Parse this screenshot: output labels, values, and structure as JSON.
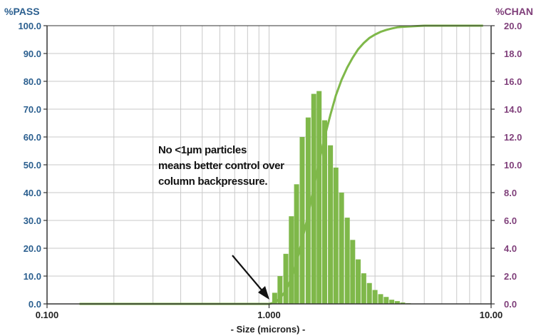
{
  "chart_data": {
    "type": "bar",
    "x_scale": "log",
    "xlabel": "- Size (microns) -",
    "ylabel_left": "%PASS",
    "ylabel_right": "%CHAN",
    "xlim": [
      0.1,
      10
    ],
    "ylim_left": [
      0,
      100
    ],
    "ylim_right": [
      0,
      20
    ],
    "x_tick_labels": [
      "0.100",
      "1.000",
      "10.00"
    ],
    "y_left_tick_labels": [
      "0.0",
      "10.0",
      "20.0",
      "30.0",
      "40.0",
      "50.0",
      "60.0",
      "70.0",
      "80.0",
      "90.0",
      "100.0"
    ],
    "y_right_tick_labels": [
      "0.0",
      "2.0",
      "4.0",
      "6.0",
      "8.0",
      "10.0",
      "12.0",
      "14.0",
      "16.0",
      "18.0",
      "20.0"
    ],
    "grid": true,
    "annotation": {
      "lines": [
        "No <1µm particles",
        "means better control over",
        "column backpressure."
      ]
    },
    "series": [
      {
        "name": "%CHAN",
        "axis": "right",
        "kind": "bar",
        "color": "#7fb84a",
        "x": [
          1.06,
          1.12,
          1.19,
          1.26,
          1.33,
          1.41,
          1.5,
          1.59,
          1.68,
          1.78,
          1.89,
          2.0,
          2.12,
          2.25,
          2.38,
          2.52,
          2.67,
          2.83,
          3.0,
          3.18,
          3.37,
          3.57,
          3.78,
          4.0,
          4.24,
          4.49,
          4.76
        ],
        "values": [
          0.8,
          2.0,
          3.6,
          6.3,
          8.6,
          12.0,
          13.4,
          15.1,
          15.3,
          13.2,
          11.4,
          9.8,
          8.0,
          6.2,
          4.6,
          3.2,
          2.2,
          1.5,
          1.0,
          0.7,
          0.5,
          0.3,
          0.2,
          0.1,
          0.05,
          0.0,
          0.0
        ]
      },
      {
        "name": "%PASS",
        "axis": "left",
        "kind": "line",
        "color": "#7fb84a",
        "x": [
          0.14,
          0.5,
          1.0,
          1.06,
          1.12,
          1.19,
          1.26,
          1.33,
          1.41,
          1.5,
          1.59,
          1.68,
          1.78,
          1.89,
          2.0,
          2.12,
          2.25,
          2.38,
          2.52,
          2.67,
          2.83,
          3.0,
          3.18,
          3.37,
          3.57,
          3.78,
          4.0,
          4.5,
          5.0,
          6.0,
          9.2
        ],
        "values": [
          0,
          0,
          0,
          0.5,
          2.0,
          4.8,
          9.2,
          15.0,
          23.0,
          32.0,
          42.0,
          51.0,
          60.0,
          68.0,
          75.0,
          80.5,
          85.0,
          88.5,
          91.5,
          93.8,
          95.6,
          96.8,
          97.8,
          98.5,
          99.0,
          99.4,
          99.6,
          99.8,
          100.0,
          100.0,
          100.0
        ]
      }
    ]
  }
}
